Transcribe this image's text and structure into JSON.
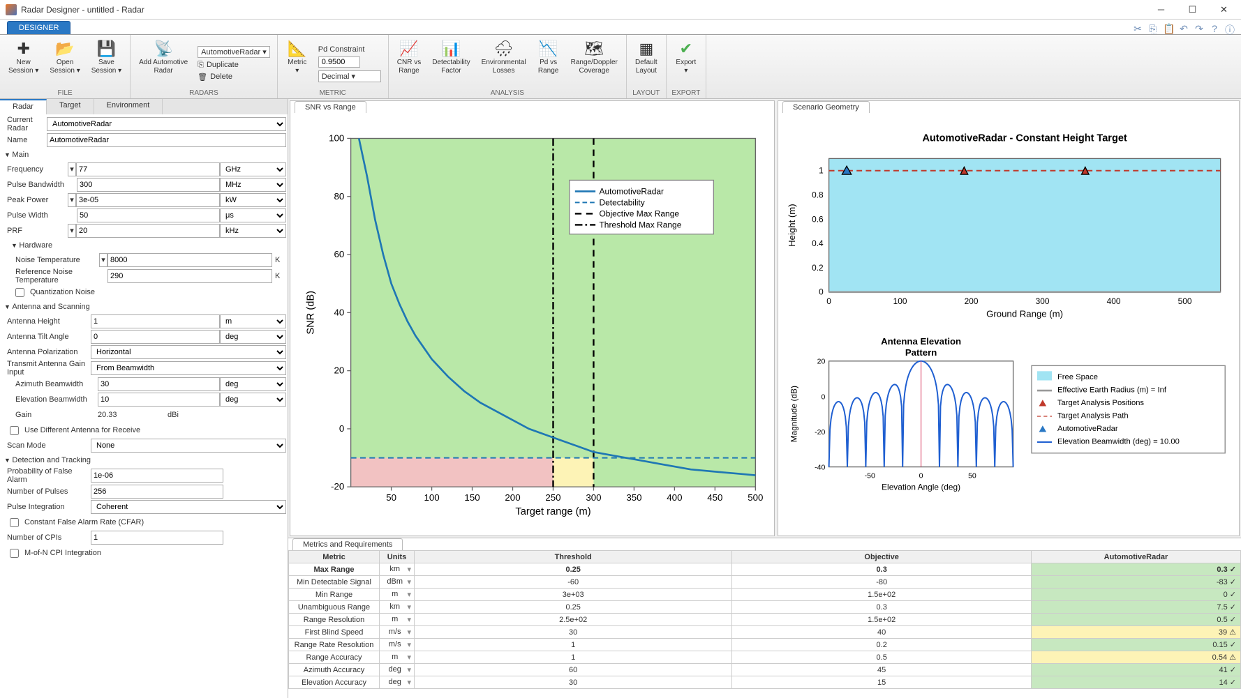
{
  "window": {
    "title": "Radar Designer - untitled - Radar"
  },
  "ribbon": {
    "tab": "DESIGNER",
    "groups": {
      "file": {
        "label": "FILE",
        "new": "New\nSession ▾",
        "open": "Open\nSession ▾",
        "save": "Save\nSession ▾"
      },
      "radars": {
        "label": "RADARS",
        "add": "Add Automotive\nRadar",
        "selector": "AutomotiveRadar ▾",
        "duplicate": "Duplicate",
        "delete": "Delete"
      },
      "metric": {
        "label": "METRIC",
        "btn": "Metric\n▾",
        "pd_label": "Pd Constraint",
        "pd_value": "0.9500",
        "decimal": "Decimal ▾"
      },
      "analysis": {
        "label": "ANALYSIS",
        "cnr": "CNR vs\nRange",
        "detect": "Detectability\nFactor",
        "env": "Environmental\nLosses",
        "pd": "Pd vs\nRange",
        "rd": "Range/Doppler\nCoverage"
      },
      "layout": {
        "label": "LAYOUT",
        "btn": "Default\nLayout"
      },
      "export": {
        "label": "EXPORT",
        "btn": "Export\n▾"
      }
    }
  },
  "subtabs": {
    "radar": "Radar",
    "target": "Target",
    "env": "Environment"
  },
  "props": {
    "currentRadarLbl": "Current Radar",
    "currentRadar": "AutomotiveRadar",
    "nameLbl": "Name",
    "name": "AutomotiveRadar",
    "main": {
      "title": "Main",
      "freqLbl": "Frequency",
      "freq": "77",
      "freqU": "GHz",
      "pbwLbl": "Pulse Bandwidth",
      "pbw": "300",
      "pbwU": "MHz",
      "ppLbl": "Peak Power",
      "pp": "3e-05",
      "ppU": "kW",
      "pwLbl": "Pulse Width",
      "pw": "50",
      "pwU": "μs",
      "prfLbl": "PRF",
      "prf": "20",
      "prfU": "kHz"
    },
    "hw": {
      "title": "Hardware",
      "ntLbl": "Noise Temperature",
      "nt": "8000",
      "ntU": "K",
      "rntLbl": "Reference Noise Temperature",
      "rnt": "290",
      "rntU": "K",
      "qn": "Quantization Noise"
    },
    "ant": {
      "title": "Antenna and Scanning",
      "ahLbl": "Antenna Height",
      "ah": "1",
      "ahU": "m",
      "atLbl": "Antenna Tilt Angle",
      "at": "0",
      "atU": "deg",
      "apLbl": "Antenna Polarization",
      "ap": "Horizontal",
      "tagLbl": "Transmit Antenna Gain Input",
      "tag": "From Beamwidth",
      "abLbl": "Azimuth Beamwidth",
      "ab": "30",
      "abU": "deg",
      "ebLbl": "Elevation Beamwidth",
      "eb": "10",
      "ebU": "deg",
      "gainLbl": "Gain",
      "gain": "20.33",
      "gainU": "dBi",
      "udaLbl": "Use Different Antenna for Receive",
      "smLbl": "Scan Mode",
      "sm": "None"
    },
    "det": {
      "title": "Detection and Tracking",
      "pfaLbl": "Probability of False Alarm",
      "pfa": "1e-06",
      "npLbl": "Number of Pulses",
      "np": "256",
      "piLbl": "Pulse Integration",
      "pi": "Coherent",
      "cfarLbl": "Constant False Alarm Rate (CFAR)",
      "ncpiLbl": "Number of CPIs",
      "ncpi": "1",
      "mnLbl": "M-of-N CPI Integration"
    }
  },
  "snrPlot": {
    "tab": "SNR vs Range",
    "xlabel": "Target range (m)",
    "ylabel": "SNR (dB)",
    "xlim": [
      0,
      500
    ],
    "ylim": [
      -20,
      100
    ],
    "xticks": [
      50,
      100,
      150,
      200,
      250,
      300,
      350,
      400,
      450,
      500
    ],
    "yticks": [
      -20,
      0,
      20,
      40,
      60,
      80,
      100
    ],
    "curve_color": "#1f77b4",
    "detect_color": "#1f77b4",
    "obj_color": "#000000",
    "thresh_color": "#000000",
    "green_fill": "#b9e8a8",
    "yellow_fill": "#fdf3b6",
    "pink_fill": "#f2c2c2",
    "detect_y": -10,
    "objective_x": 300,
    "threshold_x": 250,
    "legend": [
      "AutomotiveRadar",
      "Detectability",
      "Objective Max Range",
      "Threshold Max Range"
    ],
    "curve": [
      [
        10,
        100
      ],
      [
        20,
        87
      ],
      [
        30,
        72
      ],
      [
        40,
        60
      ],
      [
        50,
        50
      ],
      [
        60,
        43
      ],
      [
        70,
        37
      ],
      [
        80,
        32
      ],
      [
        90,
        28
      ],
      [
        100,
        24
      ],
      [
        120,
        18
      ],
      [
        140,
        13
      ],
      [
        160,
        9
      ],
      [
        180,
        6
      ],
      [
        200,
        3
      ],
      [
        220,
        0
      ],
      [
        240,
        -2
      ],
      [
        260,
        -4
      ],
      [
        280,
        -6
      ],
      [
        300,
        -8
      ],
      [
        320,
        -9
      ],
      [
        340,
        -10
      ],
      [
        360,
        -11
      ],
      [
        380,
        -12
      ],
      [
        400,
        -13
      ],
      [
        420,
        -14
      ],
      [
        440,
        -14.5
      ],
      [
        460,
        -15
      ],
      [
        480,
        -15.5
      ],
      [
        500,
        -16
      ]
    ]
  },
  "scenPlot": {
    "tab": "Scenario Geometry",
    "title": "AutomotiveRadar - Constant Height Target",
    "xlabel": "Ground Range (m)",
    "ylabel": "Height (m)",
    "xlim": [
      0,
      550
    ],
    "ylim": [
      0,
      1.1
    ],
    "xticks": [
      0,
      100,
      200,
      300,
      400,
      500
    ],
    "yticks": [
      0,
      0.2,
      0.4,
      0.6,
      0.8,
      1
    ],
    "bg": "#a1e4f3",
    "radar_marker_x": 25,
    "target_x": [
      190,
      360
    ],
    "line_y": 1,
    "path_color": "#c0392b",
    "antenna": {
      "title": "Antenna Elevation",
      "subtitle": "Pattern",
      "xlabel": "Elevation Angle (deg)",
      "ylabel": "Magnitude (dB)",
      "xlim": [
        -90,
        90
      ],
      "ylim": [
        -40,
        20
      ],
      "yticks": [
        -40,
        -20,
        0,
        20
      ],
      "xticks": [
        -50,
        0,
        50
      ],
      "color": "#1f5fd1"
    },
    "legend": {
      "fs": "Free Space",
      "eer": "Effective Earth Radius (m) = Inf",
      "tap": "Target Analysis Positions",
      "tapath": "Target Analysis Path",
      "ar": "AutomotiveRadar",
      "ebw": "Elevation Beamwidth (deg) = 10.00"
    }
  },
  "metrics": {
    "tab": "Metrics and Requirements",
    "headers": {
      "metric": "Metric",
      "units": "Units",
      "threshold": "Threshold",
      "objective": "Objective",
      "radar": "AutomotiveRadar"
    },
    "rows": [
      {
        "m": "Max Range",
        "u": "km",
        "t": "0.25",
        "o": "0.3",
        "v": "0.3",
        "s": "pass",
        "bold": true
      },
      {
        "m": "Min Detectable Signal",
        "u": "dBm",
        "t": "-60",
        "o": "-80",
        "v": "-83",
        "s": "pass"
      },
      {
        "m": "Min Range",
        "u": "m",
        "t": "3e+03",
        "o": "1.5e+02",
        "v": "0",
        "s": "pass"
      },
      {
        "m": "Unambiguous Range",
        "u": "km",
        "t": "0.25",
        "o": "0.3",
        "v": "7.5",
        "s": "pass"
      },
      {
        "m": "Range Resolution",
        "u": "m",
        "t": "2.5e+02",
        "o": "1.5e+02",
        "v": "0.5",
        "s": "pass"
      },
      {
        "m": "First Blind Speed",
        "u": "m/s",
        "t": "30",
        "o": "40",
        "v": "39",
        "s": "warn"
      },
      {
        "m": "Range Rate Resolution",
        "u": "m/s",
        "t": "1",
        "o": "0.2",
        "v": "0.15",
        "s": "pass"
      },
      {
        "m": "Range Accuracy",
        "u": "m",
        "t": "1",
        "o": "0.5",
        "v": "0.54",
        "s": "warn"
      },
      {
        "m": "Azimuth Accuracy",
        "u": "deg",
        "t": "60",
        "o": "45",
        "v": "41",
        "s": "pass"
      },
      {
        "m": "Elevation Accuracy",
        "u": "deg",
        "t": "30",
        "o": "15",
        "v": "14",
        "s": "pass"
      }
    ]
  }
}
